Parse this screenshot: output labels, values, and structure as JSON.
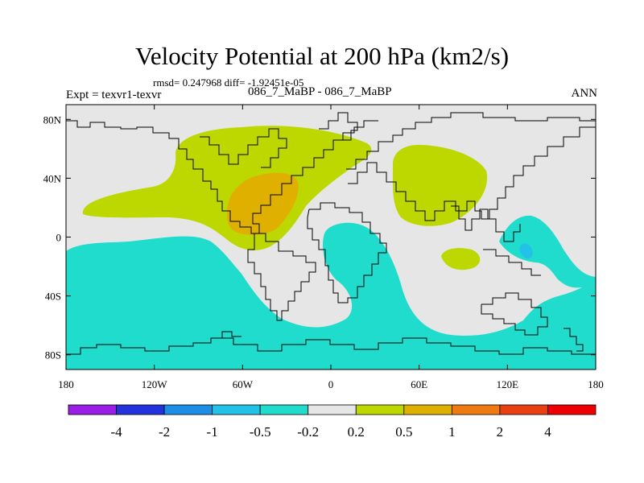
{
  "chart_data": {
    "type": "contour_map",
    "title": "Velocity Potential at 200 hPa (km2/s)",
    "stats": "rmsd= 0.247968 diff= -1.92451e-05",
    "expt": "Expt = texvr1-texvr",
    "case": "086_7_MaBP - 086_7_MaBP",
    "period": "ANN",
    "x_ticks": [
      "180",
      "120W",
      "60W",
      "0",
      "60E",
      "120E",
      "180"
    ],
    "x_tick_values": [
      -180,
      -120,
      -60,
      0,
      60,
      120,
      180
    ],
    "y_ticks": [
      "80N",
      "40N",
      "0",
      "40S",
      "80S"
    ],
    "y_tick_values": [
      80,
      40,
      0,
      -40,
      -80
    ],
    "xlim": [
      -180,
      180
    ],
    "ylim": [
      -90,
      90
    ],
    "colorbar": {
      "labels": [
        "-4",
        "-2",
        "-1",
        "-0.5",
        "-0.2",
        "0.2",
        "0.5",
        "1",
        "2",
        "4"
      ],
      "colors": [
        "#9b1ee6",
        "#2233dd",
        "#1c8ee8",
        "#22c2e8",
        "#20dccc",
        "#e6e6e6",
        "#bcd800",
        "#e0b000",
        "#ee7a10",
        "#e84010",
        "#ee0000"
      ]
    },
    "regions": [
      {
        "name": "positive-0.2-atlantic",
        "level": 0.2,
        "color": "#bcd800"
      },
      {
        "name": "positive-0.5-atlantic",
        "level": 0.5,
        "color": "#e0b000"
      },
      {
        "name": "positive-0.2-asia",
        "level": 0.2,
        "color": "#bcd800"
      },
      {
        "name": "positive-0.2-indian-ocean",
        "level": 0.2,
        "color": "#bcd800"
      },
      {
        "name": "negative-0.2-southern",
        "level": -0.2,
        "color": "#20dccc"
      },
      {
        "name": "negative-0.2-west-pacific",
        "level": -0.2,
        "color": "#20dccc"
      },
      {
        "name": "negative-0.5-west-pacific",
        "level": -0.5,
        "color": "#22c2e8"
      }
    ]
  }
}
